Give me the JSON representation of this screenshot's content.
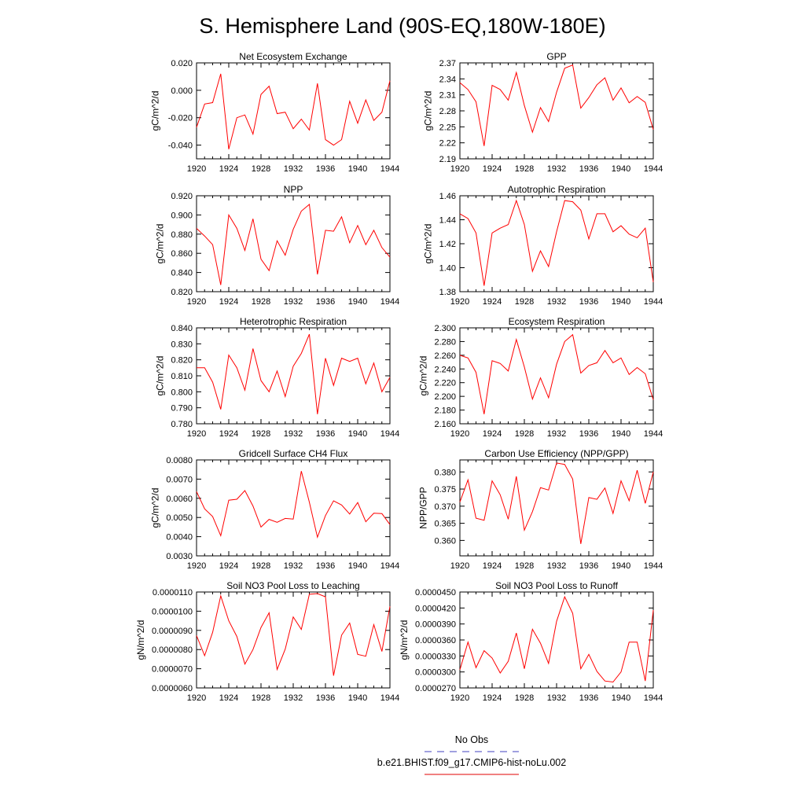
{
  "title": "S. Hemisphere Land (90S-EQ,180W-180E)",
  "legend": {
    "items": [
      {
        "label": "No Obs",
        "color": "#4040c0",
        "dash": true
      },
      {
        "label": "b.e21.BHIST.f09_g17.CMIP6-hist-noLu.002",
        "color": "#e00000",
        "dash": false
      }
    ]
  },
  "chart_data": [
    {
      "type": "line",
      "title": "Net Ecosystem Exchange",
      "ylabel": "gC/m^2/d",
      "xlim": [
        1920,
        1944
      ],
      "ylim": [
        -0.05,
        0.02
      ],
      "yticks": [
        -0.04,
        -0.02,
        0.0,
        0.02
      ],
      "ytick_labels": [
        "-0.040",
        "-0.020",
        "0.000",
        "0.020"
      ],
      "xticks": [
        1920,
        1924,
        1928,
        1932,
        1936,
        1940,
        1944
      ],
      "series": [
        {
          "color": "#ff0000",
          "x": [
            1920,
            1921,
            1922,
            1923,
            1924,
            1925,
            1926,
            1927,
            1928,
            1929,
            1930,
            1931,
            1932,
            1933,
            1934,
            1935,
            1936,
            1937,
            1938,
            1939,
            1940,
            1941,
            1942,
            1943,
            1944
          ],
          "values": [
            -0.027,
            -0.01,
            -0.009,
            0.012,
            -0.043,
            -0.02,
            -0.018,
            -0.032,
            -0.003,
            0.003,
            -0.017,
            -0.016,
            -0.028,
            -0.021,
            -0.029,
            0.005,
            -0.036,
            -0.04,
            -0.036,
            -0.008,
            -0.024,
            -0.007,
            -0.022,
            -0.016,
            0.007
          ]
        }
      ]
    },
    {
      "type": "line",
      "title": "GPP",
      "ylabel": "gC/m^2/d",
      "xlim": [
        1920,
        1944
      ],
      "ylim": [
        2.19,
        2.37
      ],
      "yticks": [
        2.19,
        2.22,
        2.25,
        2.28,
        2.31,
        2.34,
        2.37
      ],
      "ytick_labels": [
        "2.19",
        "2.22",
        "2.25",
        "2.28",
        "2.31",
        "2.34",
        "2.37"
      ],
      "xticks": [
        1920,
        1924,
        1928,
        1932,
        1936,
        1940,
        1944
      ],
      "series": [
        {
          "color": "#ff0000",
          "x": [
            1920,
            1921,
            1922,
            1923,
            1924,
            1925,
            1926,
            1927,
            1928,
            1929,
            1930,
            1931,
            1932,
            1933,
            1934,
            1935,
            1936,
            1937,
            1938,
            1939,
            1940,
            1941,
            1942,
            1943,
            1944
          ],
          "values": [
            2.333,
            2.32,
            2.297,
            2.214,
            2.328,
            2.32,
            2.3,
            2.352,
            2.29,
            2.24,
            2.286,
            2.26,
            2.315,
            2.36,
            2.366,
            2.285,
            2.305,
            2.329,
            2.342,
            2.3,
            2.323,
            2.295,
            2.307,
            2.296,
            2.245
          ]
        }
      ]
    },
    {
      "type": "line",
      "title": "NPP",
      "ylabel": "gC/m^2/d",
      "xlim": [
        1920,
        1944
      ],
      "ylim": [
        0.82,
        0.92
      ],
      "yticks": [
        0.82,
        0.84,
        0.86,
        0.88,
        0.9,
        0.92
      ],
      "ytick_labels": [
        "0.820",
        "0.840",
        "0.860",
        "0.880",
        "0.900",
        "0.920"
      ],
      "xticks": [
        1920,
        1924,
        1928,
        1932,
        1936,
        1940,
        1944
      ],
      "series": [
        {
          "color": "#ff0000",
          "x": [
            1920,
            1921,
            1922,
            1923,
            1924,
            1925,
            1926,
            1927,
            1928,
            1929,
            1930,
            1931,
            1932,
            1933,
            1934,
            1935,
            1936,
            1937,
            1938,
            1939,
            1940,
            1941,
            1942,
            1943,
            1944
          ],
          "values": [
            0.886,
            0.878,
            0.869,
            0.827,
            0.9,
            0.886,
            0.863,
            0.896,
            0.854,
            0.842,
            0.873,
            0.858,
            0.885,
            0.904,
            0.911,
            0.838,
            0.884,
            0.883,
            0.898,
            0.871,
            0.889,
            0.869,
            0.884,
            0.866,
            0.856
          ]
        }
      ]
    },
    {
      "type": "line",
      "title": "Autotrophic Respiration",
      "ylabel": "gC/m^2/d",
      "xlim": [
        1920,
        1944
      ],
      "ylim": [
        1.38,
        1.46
      ],
      "yticks": [
        1.38,
        1.4,
        1.42,
        1.44,
        1.46
      ],
      "ytick_labels": [
        "1.38",
        "1.40",
        "1.42",
        "1.44",
        "1.46"
      ],
      "xticks": [
        1920,
        1924,
        1928,
        1932,
        1936,
        1940,
        1944
      ],
      "series": [
        {
          "color": "#ff0000",
          "x": [
            1920,
            1921,
            1922,
            1923,
            1924,
            1925,
            1926,
            1927,
            1928,
            1929,
            1930,
            1931,
            1932,
            1933,
            1934,
            1935,
            1936,
            1937,
            1938,
            1939,
            1940,
            1941,
            1942,
            1943,
            1944
          ],
          "values": [
            1.445,
            1.441,
            1.429,
            1.385,
            1.429,
            1.433,
            1.436,
            1.456,
            1.436,
            1.397,
            1.414,
            1.401,
            1.43,
            1.456,
            1.455,
            1.448,
            1.424,
            1.445,
            1.445,
            1.43,
            1.435,
            1.428,
            1.425,
            1.433,
            1.388
          ]
        }
      ]
    },
    {
      "type": "line",
      "title": "Heterotrophic Respiration",
      "ylabel": "gC/m^2/d",
      "xlim": [
        1920,
        1944
      ],
      "ylim": [
        0.78,
        0.84
      ],
      "yticks": [
        0.78,
        0.79,
        0.8,
        0.81,
        0.82,
        0.83,
        0.84
      ],
      "ytick_labels": [
        "0.780",
        "0.790",
        "0.800",
        "0.810",
        "0.820",
        "0.830",
        "0.840"
      ],
      "xticks": [
        1920,
        1924,
        1928,
        1932,
        1936,
        1940,
        1944
      ],
      "series": [
        {
          "color": "#ff0000",
          "x": [
            1920,
            1921,
            1922,
            1923,
            1924,
            1925,
            1926,
            1927,
            1928,
            1929,
            1930,
            1931,
            1932,
            1933,
            1934,
            1935,
            1936,
            1937,
            1938,
            1939,
            1940,
            1941,
            1942,
            1943,
            1944
          ],
          "values": [
            0.815,
            0.815,
            0.806,
            0.789,
            0.823,
            0.815,
            0.801,
            0.827,
            0.807,
            0.8,
            0.813,
            0.797,
            0.816,
            0.824,
            0.836,
            0.786,
            0.821,
            0.804,
            0.821,
            0.819,
            0.821,
            0.805,
            0.818,
            0.8,
            0.809
          ]
        }
      ]
    },
    {
      "type": "line",
      "title": "Ecosystem Respiration",
      "ylabel": "gC/m^2/d",
      "xlim": [
        1920,
        1944
      ],
      "ylim": [
        2.16,
        2.3
      ],
      "yticks": [
        2.16,
        2.18,
        2.2,
        2.22,
        2.24,
        2.26,
        2.28,
        2.3
      ],
      "ytick_labels": [
        "2.160",
        "2.180",
        "2.200",
        "2.220",
        "2.240",
        "2.260",
        "2.280",
        "2.300"
      ],
      "xticks": [
        1920,
        1924,
        1928,
        1932,
        1936,
        1940,
        1944
      ],
      "series": [
        {
          "color": "#ff0000",
          "x": [
            1920,
            1921,
            1922,
            1923,
            1924,
            1925,
            1926,
            1927,
            1928,
            1929,
            1930,
            1931,
            1932,
            1933,
            1934,
            1935,
            1936,
            1937,
            1938,
            1939,
            1940,
            1941,
            1942,
            1943,
            1944
          ],
          "values": [
            2.26,
            2.256,
            2.235,
            2.174,
            2.252,
            2.248,
            2.237,
            2.283,
            2.243,
            2.196,
            2.227,
            2.198,
            2.247,
            2.28,
            2.29,
            2.234,
            2.245,
            2.249,
            2.267,
            2.249,
            2.256,
            2.232,
            2.242,
            2.233,
            2.195
          ]
        }
      ]
    },
    {
      "type": "line",
      "title": "Gridcell Surface CH4 Flux",
      "ylabel": "gC/m^2/d",
      "xlim": [
        1920,
        1944
      ],
      "ylim": [
        0.003,
        0.008
      ],
      "yticks": [
        0.003,
        0.004,
        0.005,
        0.006,
        0.007,
        0.008
      ],
      "ytick_labels": [
        "0.0030",
        "0.0040",
        "0.0050",
        "0.0060",
        "0.0070",
        "0.0080"
      ],
      "xticks": [
        1920,
        1924,
        1928,
        1932,
        1936,
        1940,
        1944
      ],
      "series": [
        {
          "color": "#ff0000",
          "x": [
            1920,
            1921,
            1922,
            1923,
            1924,
            1925,
            1926,
            1927,
            1928,
            1929,
            1930,
            1931,
            1932,
            1933,
            1934,
            1935,
            1936,
            1937,
            1938,
            1939,
            1940,
            1941,
            1942,
            1943,
            1944
          ],
          "values": [
            0.00635,
            0.00545,
            0.00505,
            0.00405,
            0.0059,
            0.00595,
            0.0064,
            0.0056,
            0.0045,
            0.0049,
            0.00475,
            0.00495,
            0.00492,
            0.00742,
            0.0058,
            0.00397,
            0.0051,
            0.00587,
            0.00565,
            0.00518,
            0.00578,
            0.00478,
            0.00522,
            0.0052,
            0.00463
          ]
        }
      ]
    },
    {
      "type": "line",
      "title": "Carbon Use Efficiency (NPP/GPP)",
      "ylabel": "NPP/GPP",
      "xlim": [
        1920,
        1944
      ],
      "ylim": [
        0.3555,
        0.3835
      ],
      "yticks": [
        0.36,
        0.365,
        0.37,
        0.375,
        0.38
      ],
      "ytick_labels": [
        "0.360",
        "0.365",
        "0.370",
        "0.375",
        "0.380"
      ],
      "xticks": [
        1920,
        1924,
        1928,
        1932,
        1936,
        1940,
        1944
      ],
      "series": [
        {
          "color": "#ff0000",
          "x": [
            1920,
            1921,
            1922,
            1923,
            1924,
            1925,
            1926,
            1927,
            1928,
            1929,
            1930,
            1931,
            1932,
            1933,
            1934,
            1935,
            1936,
            1937,
            1938,
            1939,
            1940,
            1941,
            1942,
            1943,
            1944
          ],
          "values": [
            0.3712,
            0.3777,
            0.3665,
            0.3659,
            0.3774,
            0.3733,
            0.3662,
            0.3787,
            0.363,
            0.3684,
            0.3754,
            0.3747,
            0.3826,
            0.3822,
            0.3779,
            0.359,
            0.3725,
            0.372,
            0.3753,
            0.3679,
            0.3774,
            0.3716,
            0.3805,
            0.3708,
            0.38
          ]
        }
      ]
    },
    {
      "type": "line",
      "title": "Soil NO3 Pool Loss to Leaching",
      "ylabel": "gN/m^2/d",
      "xlim": [
        1920,
        1944
      ],
      "ylim": [
        6e-06,
        1.1e-05
      ],
      "yticks": [
        6e-06,
        7e-06,
        8e-06,
        9e-06,
        1e-05,
        1.1e-05
      ],
      "ytick_labels": [
        "0.0000060",
        "0.0000070",
        "0.0000080",
        "0.0000090",
        "0.0000100",
        "0.0000110"
      ],
      "xticks": [
        1920,
        1924,
        1928,
        1932,
        1936,
        1940,
        1944
      ],
      "series": [
        {
          "color": "#ff0000",
          "x": [
            1920,
            1921,
            1922,
            1923,
            1924,
            1925,
            1926,
            1927,
            1928,
            1929,
            1930,
            1931,
            1932,
            1933,
            1934,
            1935,
            1936,
            1937,
            1938,
            1939,
            1940,
            1941,
            1942,
            1943,
            1944
          ],
          "values": [
            8.73e-06,
            7.68e-06,
            8.9e-06,
            1.08e-05,
            9.5e-06,
            8.68e-06,
            7.24e-06,
            8e-06,
            9.15e-06,
            9.92e-06,
            6.96e-06,
            8.02e-06,
            9.7e-06,
            9.05e-06,
            1.088e-05,
            1.092e-05,
            1.075e-05,
            6.64e-06,
            8.75e-06,
            9.38e-06,
            7.75e-06,
            7.65e-06,
            9.3e-06,
            7.9e-06,
            1.025e-05
          ]
        }
      ]
    },
    {
      "type": "line",
      "title": "Soil NO3 Pool Loss to Runoff",
      "ylabel": "gN/m^2/d",
      "xlim": [
        1920,
        1944
      ],
      "ylim": [
        2.7e-05,
        4.5e-05
      ],
      "yticks": [
        2.7e-05,
        3e-05,
        3.3e-05,
        3.6e-05,
        3.9e-05,
        4.2e-05,
        4.5e-05
      ],
      "ytick_labels": [
        "0.0000270",
        "0.0000300",
        "0.0000330",
        "0.0000360",
        "0.0000390",
        "0.0000420",
        "0.0000450"
      ],
      "xticks": [
        1920,
        1924,
        1928,
        1932,
        1936,
        1940,
        1944
      ],
      "series": [
        {
          "color": "#ff0000",
          "x": [
            1920,
            1921,
            1922,
            1923,
            1924,
            1925,
            1926,
            1927,
            1928,
            1929,
            1930,
            1931,
            1932,
            1933,
            1934,
            1935,
            1936,
            1937,
            1938,
            1939,
            1940,
            1941,
            1942,
            1943,
            1944
          ],
          "values": [
            3.04e-05,
            3.56e-05,
            3.08e-05,
            3.4e-05,
            3.26e-05,
            2.98e-05,
            3.2e-05,
            3.73e-05,
            3.06e-05,
            3.8e-05,
            3.54e-05,
            3.16e-05,
            3.95e-05,
            4.41e-05,
            4.1e-05,
            3.06e-05,
            3.33e-05,
            3.01e-05,
            2.83e-05,
            2.81e-05,
            3e-05,
            3.56e-05,
            3.56e-05,
            2.83e-05,
            4.16e-05
          ]
        }
      ]
    }
  ]
}
